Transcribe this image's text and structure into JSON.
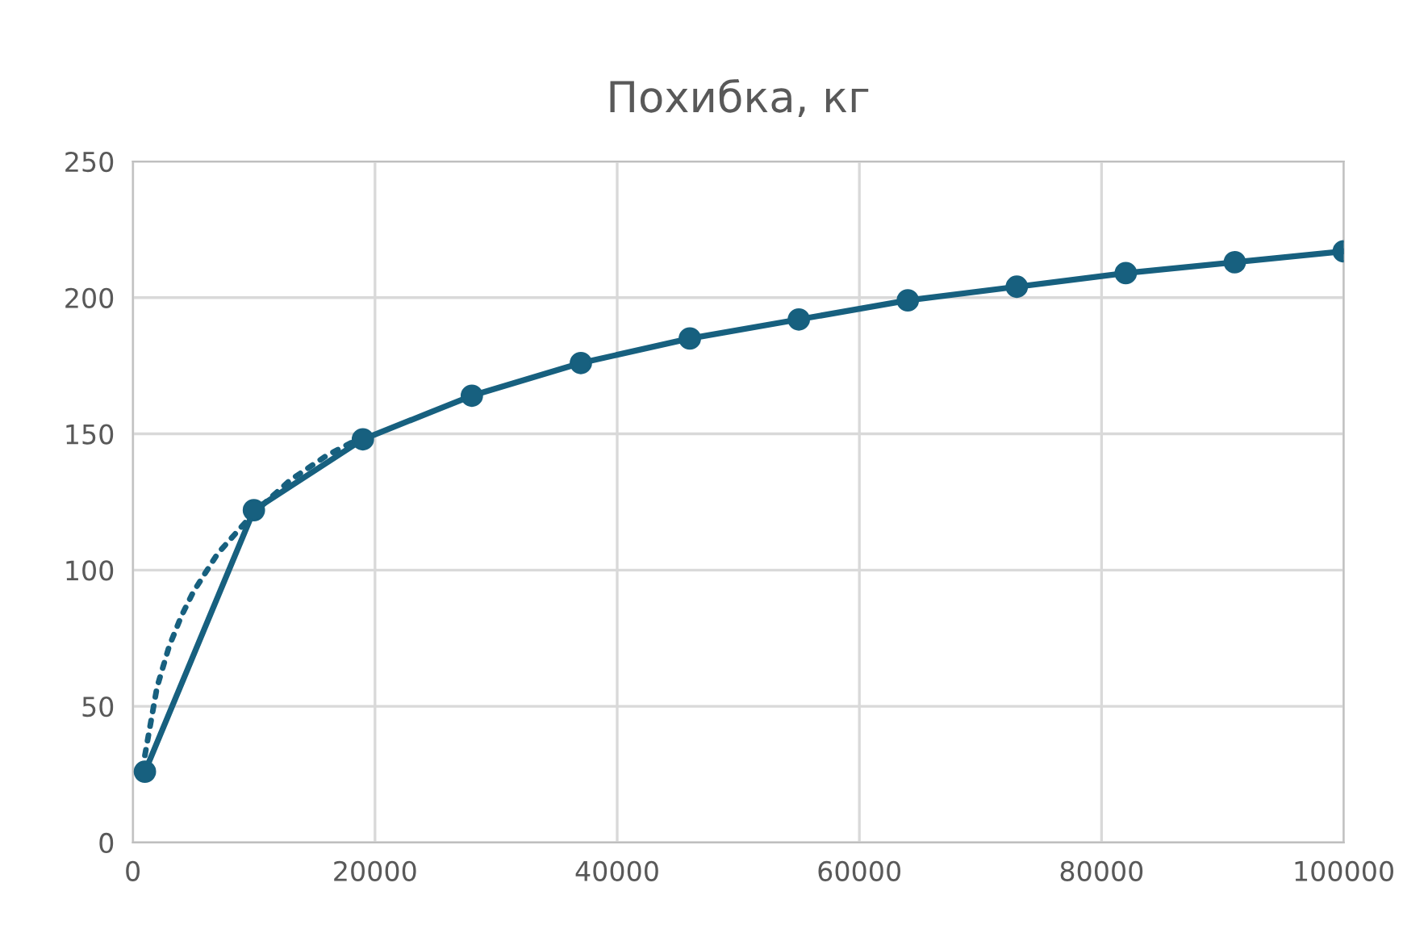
{
  "chart_data": {
    "type": "line",
    "title": "Похибка, кг",
    "series": [
      {
        "color": "#17607f",
        "marker": "circle",
        "line_style": "solid",
        "x": [
          1000,
          10000,
          19000,
          28000,
          37000,
          46000,
          55000,
          64000,
          73000,
          82000,
          91000,
          100000
        ],
        "values": [
          26,
          122,
          148,
          164,
          176,
          185,
          192,
          199,
          204,
          209,
          213,
          217
        ]
      },
      {
        "color": "#17607f",
        "marker": "none",
        "line_style": "dotted",
        "x": [
          1000,
          2000,
          3000,
          4000,
          5000,
          7000,
          10000,
          13000,
          16000,
          19000
        ],
        "values": [
          32,
          57,
          72,
          83,
          92,
          106,
          121,
          133,
          142,
          149
        ]
      }
    ],
    "xlim": [
      0,
      100000
    ],
    "xticks": [
      0,
      20000,
      40000,
      60000,
      80000,
      100000
    ],
    "ylim": [
      0,
      250
    ],
    "yticks": [
      0,
      50,
      100,
      150,
      200,
      250
    ],
    "grid": true,
    "legend": false
  }
}
